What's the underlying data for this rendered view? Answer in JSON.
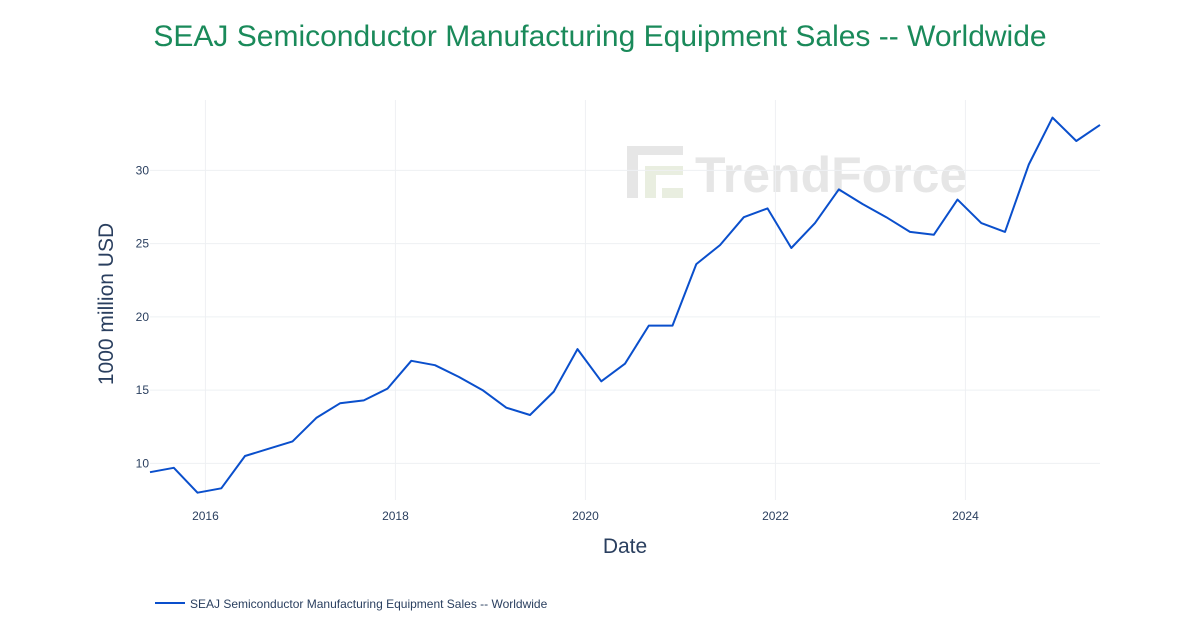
{
  "chart_data": {
    "type": "line",
    "title": "SEAJ Semiconductor Manufacturing Equipment Sales -- Worldwide",
    "xlabel": "Date",
    "ylabel": "1000 million USD",
    "x_ticks": [
      "2016",
      "2018",
      "2020",
      "2022",
      "2024"
    ],
    "y_ticks": [
      10,
      15,
      20,
      25,
      30
    ],
    "xlim": [
      "2015-06",
      "2025-06"
    ],
    "ylim": [
      7.5,
      34.8
    ],
    "grid": true,
    "legend_position": "bottom-left",
    "series": [
      {
        "name": "SEAJ Semiconductor Manufacturing Equipment Sales -- Worldwide",
        "color": "#0a4fcc",
        "x": [
          "2015-06",
          "2015-09",
          "2015-12",
          "2016-03",
          "2016-06",
          "2016-09",
          "2016-12",
          "2017-03",
          "2017-06",
          "2017-09",
          "2017-12",
          "2018-03",
          "2018-06",
          "2018-09",
          "2018-12",
          "2019-03",
          "2019-06",
          "2019-09",
          "2019-12",
          "2020-03",
          "2020-06",
          "2020-09",
          "2020-12",
          "2021-03",
          "2021-06",
          "2021-09",
          "2021-12",
          "2022-03",
          "2022-06",
          "2022-09",
          "2022-12",
          "2023-03",
          "2023-06",
          "2023-09",
          "2023-12",
          "2024-03",
          "2024-06",
          "2024-09",
          "2024-12",
          "2025-03",
          "2025-06"
        ],
        "values": [
          9.4,
          9.7,
          8.0,
          8.3,
          10.5,
          11.0,
          11.5,
          13.1,
          14.1,
          14.3,
          15.1,
          17.0,
          16.7,
          15.9,
          15.0,
          13.8,
          13.3,
          14.9,
          17.8,
          15.6,
          16.8,
          19.4,
          19.4,
          23.6,
          24.9,
          26.8,
          27.4,
          24.7,
          26.4,
          28.7,
          27.7,
          26.8,
          25.8,
          25.6,
          28.0,
          26.4,
          25.8,
          30.4,
          33.6,
          32.0,
          33.1
        ]
      }
    ]
  },
  "watermark_text": "TrendForce"
}
